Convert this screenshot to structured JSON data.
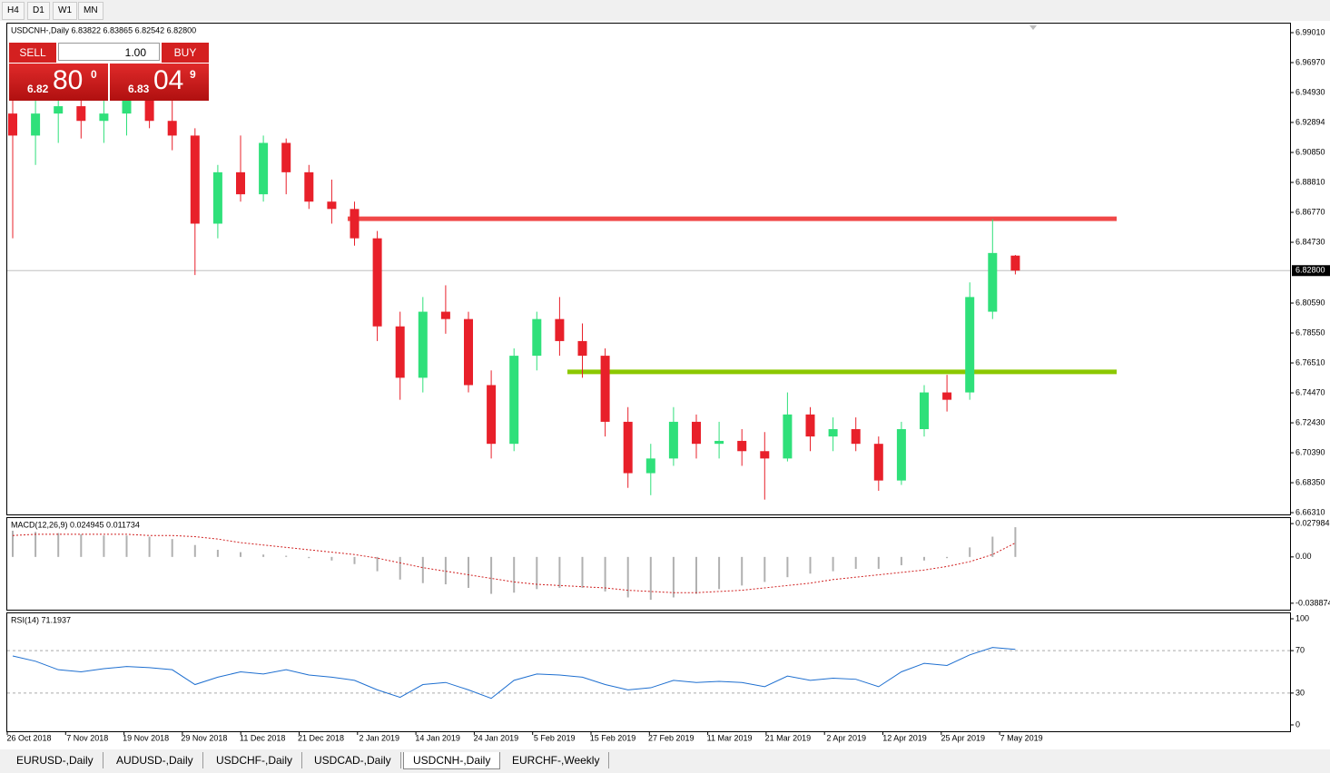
{
  "toolbar": {
    "timeframes": [
      "H4",
      "D1",
      "W1",
      "MN"
    ]
  },
  "trade_panel": {
    "sell": "SELL",
    "buy": "BUY",
    "lot": "1.00",
    "sell_prefix": "6.82",
    "sell_big": "80",
    "sell_sup": "0",
    "buy_prefix": "6.83",
    "buy_big": "04",
    "buy_sup": "9"
  },
  "chart_data": [
    {
      "type": "candlestick",
      "title": "USDCNH-,Daily  6.83822 6.83865 6.82542 6.82800",
      "up_color": "#2fe07a",
      "down_color": "#e8202a",
      "ylim": [
        6.6619,
        6.9969
      ],
      "yticks": [
        {
          "value": 6.9901,
          "label": "6.99010"
        },
        {
          "value": 6.9697,
          "label": "6.96970"
        },
        {
          "value": 6.9493,
          "label": "6.94930"
        },
        6.92894,
        {
          "value": 6.9085,
          "label": "6.90850"
        },
        {
          "value": 6.8881,
          "label": "6.88810"
        },
        {
          "value": 6.8677,
          "label": "6.86770"
        },
        {
          "value": 6.8473,
          "label": "6.84730"
        },
        {
          "value": 6.8059,
          "label": "6.80590"
        },
        {
          "value": 6.7855,
          "label": "6.78550"
        },
        {
          "value": 6.7651,
          "label": "6.76510"
        },
        {
          "value": 6.7447,
          "label": "6.74470"
        },
        {
          "value": 6.7243,
          "label": "6.72430"
        },
        {
          "value": 6.7039,
          "label": "6.70390"
        },
        {
          "value": 6.6835,
          "label": "6.68350"
        },
        {
          "value": 6.6631,
          "label": "6.66310"
        }
      ],
      "current_price": {
        "value": 6.828,
        "label": "6.82800"
      },
      "levels": [
        {
          "value": 6.8633,
          "color": "#f04848"
        },
        {
          "value": 6.759,
          "color": "#8cc800"
        }
      ],
      "x_labels": [
        "26 Oct 2018",
        "7 Nov 2018",
        "19 Nov 2018",
        "29 Nov 2018",
        "11 Dec 2018",
        "21 Dec 2018",
        "2 Jan 2019",
        "14 Jan 2019",
        "24 Jan 2019",
        "5 Feb 2019",
        "15 Feb 2019",
        "27 Feb 2019",
        "11 Mar 2019",
        "21 Mar 2019",
        "2 Apr 2019",
        "12 Apr 2019",
        "25 Apr 2019",
        "7 May 2019"
      ],
      "open": [
        6.935,
        6.92,
        6.935,
        6.94,
        6.93,
        6.935,
        6.945,
        6.93,
        6.92,
        6.86,
        6.895,
        6.88,
        6.915,
        6.895,
        6.875,
        6.87,
        6.85,
        6.79,
        6.755,
        6.8,
        6.795,
        6.75,
        6.71,
        6.77,
        6.795,
        6.78,
        6.77,
        6.725,
        6.69,
        6.7,
        6.725,
        6.71,
        6.712,
        6.705,
        6.7,
        6.73,
        6.715,
        6.72,
        6.71,
        6.685,
        6.72,
        6.745,
        6.745,
        6.8,
        6.83822
      ],
      "high": [
        6.95,
        6.945,
        6.95,
        6.952,
        6.948,
        6.95,
        6.955,
        6.945,
        6.925,
        6.9,
        6.92,
        6.92,
        6.918,
        6.9,
        6.89,
        6.875,
        6.855,
        6.8,
        6.81,
        6.818,
        6.8,
        6.76,
        6.775,
        6.8,
        6.81,
        6.792,
        6.775,
        6.735,
        6.71,
        6.735,
        6.73,
        6.725,
        6.72,
        6.718,
        6.745,
        6.735,
        6.728,
        6.728,
        6.715,
        6.725,
        6.75,
        6.757,
        6.82,
        6.863,
        6.83865
      ],
      "low": [
        6.85,
        6.9,
        6.915,
        6.918,
        6.915,
        6.92,
        6.925,
        6.91,
        6.825,
        6.85,
        6.875,
        6.875,
        6.88,
        6.87,
        6.86,
        6.845,
        6.78,
        6.74,
        6.745,
        6.785,
        6.745,
        6.7,
        6.705,
        6.76,
        6.77,
        6.755,
        6.715,
        6.68,
        6.675,
        6.695,
        6.7,
        6.7,
        6.695,
        6.672,
        6.698,
        6.705,
        6.705,
        6.705,
        6.678,
        6.682,
        6.715,
        6.732,
        6.74,
        6.795,
        6.82542
      ],
      "close": [
        6.92,
        6.935,
        6.94,
        6.93,
        6.935,
        6.945,
        6.93,
        6.92,
        6.86,
        6.895,
        6.88,
        6.915,
        6.895,
        6.875,
        6.87,
        6.85,
        6.79,
        6.755,
        6.8,
        6.795,
        6.75,
        6.71,
        6.77,
        6.795,
        6.78,
        6.77,
        6.725,
        6.69,
        6.7,
        6.725,
        6.71,
        6.712,
        6.705,
        6.7,
        6.73,
        6.715,
        6.72,
        6.71,
        6.685,
        6.72,
        6.745,
        6.74,
        6.81,
        6.84,
        6.828
      ]
    },
    {
      "type": "macd",
      "title": "MACD(12,26,9) 0.024945 0.011734",
      "ylim": [
        -0.0443,
        0.0334
      ],
      "yticks": [
        0.027984,
        {
          "value": 0,
          "label": "0.00"
        },
        -0.038874
      ],
      "color": "#b0b0b0",
      "signal_color": "#d02020",
      "histogram": [
        0.022,
        0.021,
        0.02,
        0.019,
        0.018,
        0.018,
        0.017,
        0.015,
        0.01,
        0.006,
        0.004,
        0.002,
        0.001,
        -0.001,
        -0.003,
        -0.006,
        -0.012,
        -0.019,
        -0.022,
        -0.023,
        -0.026,
        -0.031,
        -0.03,
        -0.027,
        -0.026,
        -0.026,
        -0.029,
        -0.034,
        -0.036,
        -0.034,
        -0.031,
        -0.027,
        -0.024,
        -0.021,
        -0.017,
        -0.014,
        -0.012,
        -0.01,
        -0.01,
        -0.007,
        -0.003,
        -0.001,
        0.008,
        0.017,
        0.024945
      ],
      "signal": [
        0.018,
        0.019,
        0.019,
        0.019,
        0.019,
        0.019,
        0.018,
        0.018,
        0.017,
        0.015,
        0.012,
        0.01,
        0.008,
        0.006,
        0.004,
        0.002,
        -0.001,
        -0.005,
        -0.009,
        -0.012,
        -0.015,
        -0.018,
        -0.021,
        -0.023,
        -0.024,
        -0.025,
        -0.026,
        -0.028,
        -0.029,
        -0.03,
        -0.03,
        -0.029,
        -0.028,
        -0.026,
        -0.024,
        -0.022,
        -0.019,
        -0.017,
        -0.015,
        -0.013,
        -0.011,
        -0.008,
        -0.004,
        0.002,
        0.011734
      ]
    },
    {
      "type": "line",
      "title": "RSI(14) 71.1937",
      "ylim": [
        -6,
        106
      ],
      "yticks": [
        100,
        70,
        30,
        0
      ],
      "color": "#1e6fd0",
      "values": [
        65,
        60,
        52,
        50,
        53,
        55,
        54,
        52,
        38,
        45,
        50,
        48,
        52,
        47,
        45,
        42,
        33,
        26,
        38,
        40,
        33,
        25,
        42,
        48,
        47,
        45,
        38,
        33,
        35,
        42,
        40,
        41,
        40,
        36,
        46,
        42,
        44,
        43,
        36,
        50,
        58,
        56,
        66,
        73,
        71.1937
      ]
    }
  ],
  "tabs": {
    "items": [
      "EURUSD-,Daily",
      "AUDUSD-,Daily",
      "USDCHF-,Daily",
      "USDCAD-,Daily",
      "USDCNH-,Daily",
      "EURCHF-,Weekly"
    ],
    "active": 4
  }
}
